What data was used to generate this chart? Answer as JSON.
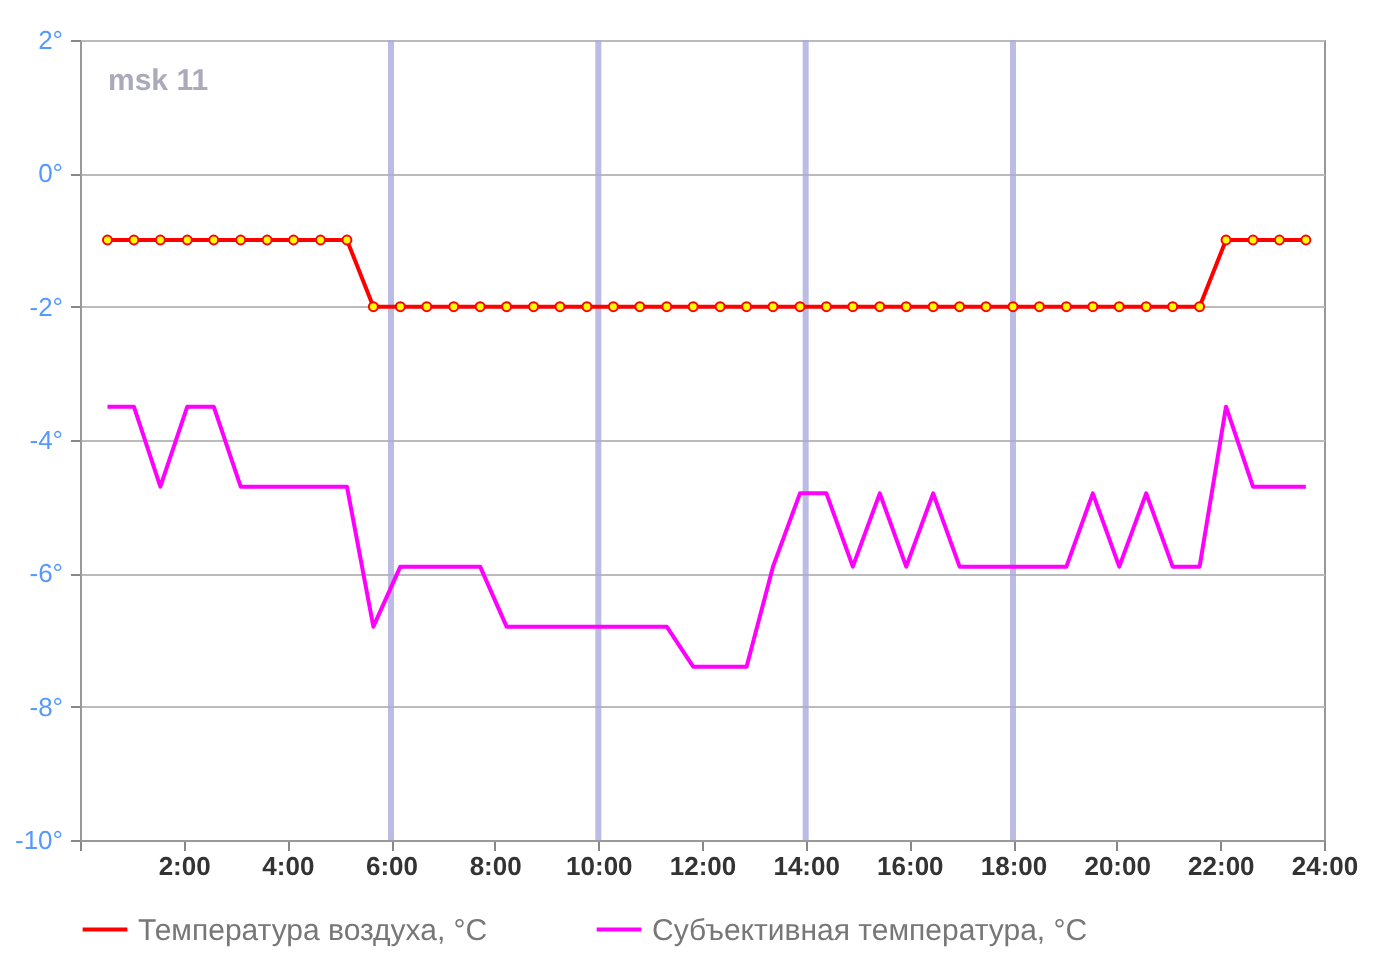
{
  "chart_data": {
    "type": "line",
    "annotations": [
      "msk 11"
    ],
    "xlim": [
      0,
      24
    ],
    "xticks": [
      {
        "value": 0,
        "label": null
      },
      {
        "value": 2,
        "label": "2:00"
      },
      {
        "value": 4,
        "label": "4:00"
      },
      {
        "value": 6,
        "label": "6:00"
      },
      {
        "value": 8,
        "label": "8:00"
      },
      {
        "value": 10,
        "label": "10:00"
      },
      {
        "value": 12,
        "label": "12:00"
      },
      {
        "value": 14,
        "label": "14:00"
      },
      {
        "value": 16,
        "label": "16:00"
      },
      {
        "value": 18,
        "label": "18:00"
      },
      {
        "value": 20,
        "label": "20:00"
      },
      {
        "value": 22,
        "label": "22:00"
      },
      {
        "value": 24,
        "label": "24:00"
      }
    ],
    "ylim": [
      -10,
      2
    ],
    "yticks": [
      {
        "value": -10,
        "label": "-10°"
      },
      {
        "value": -8,
        "label": "-8°"
      },
      {
        "value": -6,
        "label": "-6°"
      },
      {
        "value": -4,
        "label": "-4°"
      },
      {
        "value": -2,
        "label": "-2°"
      },
      {
        "value": 0,
        "label": "0°"
      },
      {
        "value": 2,
        "label": "2°"
      }
    ],
    "x": [
      0.53,
      1.04,
      1.55,
      2.07,
      2.58,
      3.1,
      3.61,
      4.12,
      4.64,
      5.15,
      5.66,
      6.18,
      6.69,
      7.21,
      7.72,
      8.23,
      8.75,
      9.26,
      9.78,
      10.29,
      10.8,
      11.32,
      11.83,
      12.35,
      12.86,
      13.37,
      13.89,
      14.4,
      14.91,
      15.43,
      15.94,
      16.46,
      16.97,
      17.48,
      18.0,
      18.51,
      19.03,
      19.54,
      20.05,
      20.57,
      21.08,
      21.6,
      22.11,
      22.63,
      23.14,
      23.65
    ],
    "series": [
      {
        "name": "Температура воздуха, °C",
        "color": "#ff0000",
        "marker": "circle",
        "values": [
          -1,
          -1,
          -1,
          -1,
          -1,
          -1,
          -1,
          -1,
          -1,
          -1,
          -2,
          -2,
          -2,
          -2,
          -2,
          -2,
          -2,
          -2,
          -2,
          -2,
          -2,
          -2,
          -2,
          -2,
          -2,
          -2,
          -2,
          -2,
          -2,
          -2,
          -2,
          -2,
          -2,
          -2,
          -2,
          -2,
          -2,
          -2,
          -2,
          -2,
          -2,
          -2,
          -1,
          -1,
          -1,
          -1
        ]
      },
      {
        "name": "Субъективная температура, °C",
        "color": "#ff00ff",
        "marker": "none",
        "values": [
          -3.5,
          -3.5,
          -4.7,
          -3.5,
          -3.5,
          -4.7,
          -4.7,
          -4.7,
          -4.7,
          -4.7,
          -6.8,
          -5.9,
          -5.9,
          -5.9,
          -5.9,
          -6.8,
          -6.8,
          -6.8,
          -6.8,
          -6.8,
          -6.8,
          -6.8,
          -7.4,
          -7.4,
          -7.4,
          -5.9,
          -4.8,
          -4.8,
          -5.9,
          -4.8,
          -5.9,
          -4.8,
          -5.9,
          -5.9,
          -5.9,
          -5.9,
          -5.9,
          -4.8,
          -5.9,
          -4.8,
          -5.9,
          -5.9,
          -3.5,
          -4.7,
          -4.7,
          -4.7
        ]
      }
    ],
    "ref_lines": [
      {
        "axis": "x",
        "value": 6,
        "color": "#aaaadd"
      },
      {
        "axis": "x",
        "value": 10,
        "color": "#aaaadd"
      },
      {
        "axis": "x",
        "value": 14,
        "color": "#aaaadd"
      },
      {
        "axis": "x",
        "value": 18,
        "color": "#aaaadd"
      }
    ],
    "grid": "y",
    "legend": "bottom",
    "line_style": "solid"
  }
}
